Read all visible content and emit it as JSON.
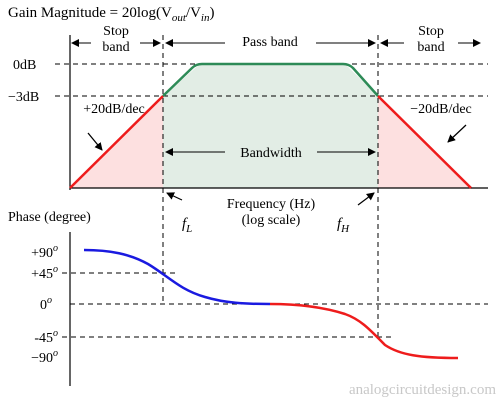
{
  "title": {
    "prefix": "Gain Magnitude = 20log(V",
    "sub_out": "out",
    "slash": "/V",
    "sub_in": "in",
    "suffix": ")"
  },
  "regions": {
    "stop_band_left": [
      "Stop",
      "band"
    ],
    "pass_band": "Pass band",
    "stop_band_right": [
      "Stop",
      "band"
    ]
  },
  "gain": {
    "level_0db": "0dB",
    "level_minus3db": "−3dB",
    "slope_left": "+20dB/dec",
    "slope_right": "−20dB/dec",
    "bandwidth": "Bandwidth"
  },
  "frequency_axis": {
    "label_line1": "Frequency (Hz)",
    "label_line2": "(log scale)",
    "f_low": "f",
    "f_low_sub": "L",
    "f_high": "f",
    "f_high_sub": "H"
  },
  "phase": {
    "title": "Phase (degree)",
    "ticks": [
      {
        "value": "+90",
        "sup": "o"
      },
      {
        "value": "+45",
        "sup": "o"
      },
      {
        "value": "0",
        "sup": "o"
      },
      {
        "value": "-45",
        "sup": "o"
      },
      {
        "value": "−90",
        "sup": "o"
      }
    ]
  },
  "watermark": "analogcircuitdesign.com",
  "colors": {
    "rising_slope": "#ee1c1c",
    "pass_top": "#2e8b57",
    "pass_fill": "#e2ede5",
    "stop_fill": "#fde0e0",
    "phase_blue": "#1a1ae0",
    "phase_red": "#ee1c1c",
    "watermark": "#c8c8c8"
  }
}
